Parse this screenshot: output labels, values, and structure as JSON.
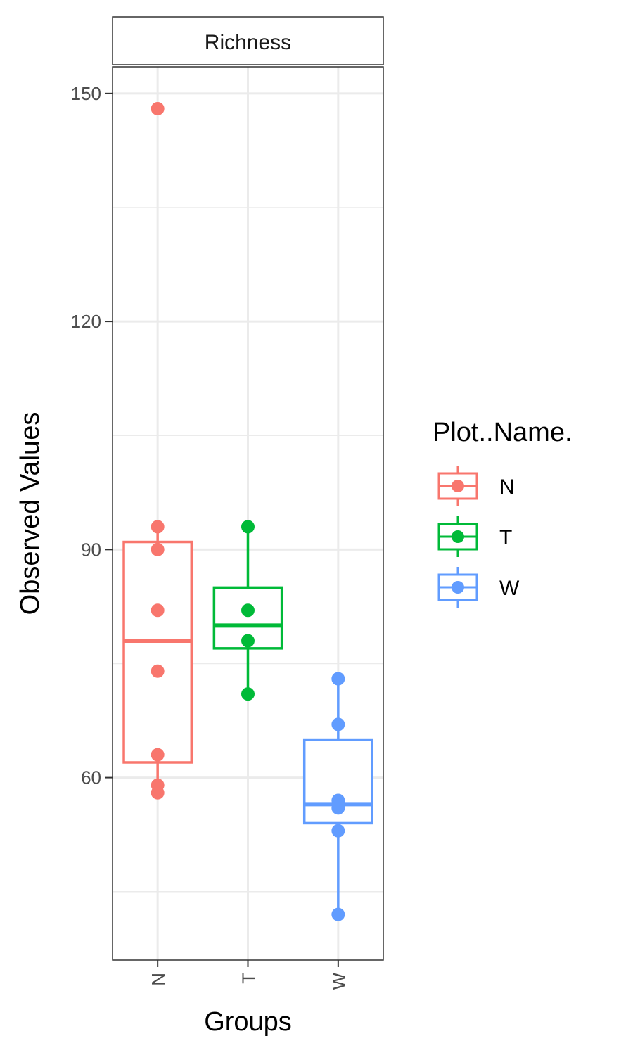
{
  "chart_data": {
    "type": "box",
    "facet_label": "Richness",
    "xlabel": "Groups",
    "ylabel": "Observed Values",
    "categories": [
      "N",
      "T",
      "W"
    ],
    "ylim": [
      36,
      153.5
    ],
    "y_ticks": [
      60,
      90,
      120,
      150
    ],
    "y_tick_labels": [
      "60",
      "90",
      "120",
      "150"
    ],
    "y_minor_ticks": [
      45,
      75,
      105,
      135
    ],
    "grid": true,
    "legend": {
      "title": "Plot..Name.",
      "position": "right",
      "entries": [
        "N",
        "T",
        "W"
      ]
    },
    "series": [
      {
        "name": "N",
        "color": "#F8766D",
        "box": {
          "q1": 62,
          "median": 78,
          "q3": 91,
          "whisker_low": 58,
          "whisker_high": 93
        },
        "points": [
          148,
          93,
          90,
          82,
          74,
          63,
          59,
          58
        ]
      },
      {
        "name": "T",
        "color": "#00BA38",
        "box": {
          "q1": 77,
          "median": 80,
          "q3": 85,
          "whisker_low": 71,
          "whisker_high": 93
        },
        "points": [
          93,
          82,
          78,
          71
        ]
      },
      {
        "name": "W",
        "color": "#619CFF",
        "box": {
          "q1": 54,
          "median": 56.5,
          "q3": 65,
          "whisker_low": 42,
          "whisker_high": 73
        },
        "points": [
          73,
          67,
          57,
          56,
          53,
          42
        ]
      }
    ]
  }
}
